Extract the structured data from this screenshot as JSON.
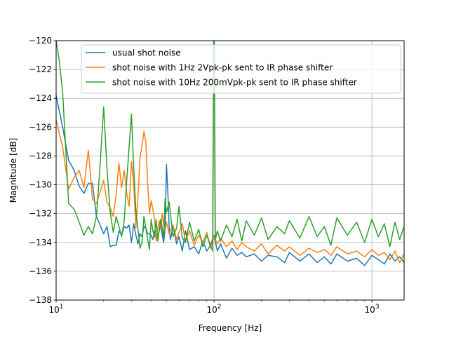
{
  "chart_data": {
    "type": "line",
    "title": "",
    "xlabel": "Frequency [Hz]",
    "ylabel": "Magnitude [dB]",
    "xscale": "log",
    "xlim": [
      10,
      1600
    ],
    "ylim": [
      -138,
      -120
    ],
    "x_ticks": [
      {
        "value": 10,
        "base": "10",
        "exp": "1"
      },
      {
        "value": 100,
        "base": "10",
        "exp": "2"
      },
      {
        "value": 1000,
        "base": "10",
        "exp": "3"
      }
    ],
    "y_ticks": [
      {
        "value": -138,
        "label": "−138"
      },
      {
        "value": -136,
        "label": "−136"
      },
      {
        "value": -134,
        "label": "−134"
      },
      {
        "value": -132,
        "label": "−132"
      },
      {
        "value": -130,
        "label": "−130"
      },
      {
        "value": -128,
        "label": "−128"
      },
      {
        "value": -126,
        "label": "−126"
      },
      {
        "value": -124,
        "label": "−124"
      },
      {
        "value": -122,
        "label": "−122"
      },
      {
        "value": -120,
        "label": "−120"
      }
    ],
    "grid": true,
    "legend_position": "top-right",
    "series": [
      {
        "name": "usual shot noise",
        "color": "#1f77b4",
        "x": [
          10,
          11,
          12,
          13,
          14,
          15,
          16,
          17,
          18,
          19,
          20,
          21,
          22,
          23,
          24,
          25,
          26,
          27,
          28,
          29,
          30,
          31,
          32,
          33,
          34,
          35,
          36,
          37,
          38,
          39,
          40,
          41,
          42,
          43,
          44,
          45,
          46,
          47,
          48,
          49,
          50,
          51,
          52,
          53,
          55,
          58,
          60,
          63,
          66,
          70,
          75,
          80,
          85,
          90,
          95,
          100,
          105,
          110,
          120,
          130,
          140,
          150,
          160,
          180,
          200,
          220,
          250,
          280,
          300,
          350,
          400,
          450,
          500,
          550,
          600,
          700,
          800,
          900,
          1000,
          1100,
          1200,
          1300,
          1400,
          1500,
          1600
        ],
        "y": [
          -123.8,
          -126.0,
          -128.3,
          -129.0,
          -130.1,
          -130.6,
          -129.9,
          -129.9,
          -132.2,
          -132.8,
          -133.4,
          -132.9,
          -134.3,
          -134.2,
          -134.2,
          -133.2,
          -133.5,
          -132.9,
          -133.0,
          -132.8,
          -134.0,
          -132.7,
          -133.5,
          -134.1,
          -133.4,
          -133.6,
          -132.9,
          -133.0,
          -133.4,
          -133.4,
          -133.5,
          -133.8,
          -133.2,
          -133.7,
          -133.6,
          -133.2,
          -132.8,
          -133.5,
          -134.0,
          -133.0,
          -128.6,
          -130.5,
          -133.0,
          -133.8,
          -132.9,
          -134.1,
          -133.6,
          -134.6,
          -133.2,
          -134.5,
          -134.3,
          -134.8,
          -133.9,
          -134.6,
          -134.2,
          -133.5,
          -134.6,
          -134.1,
          -135.1,
          -134.4,
          -134.9,
          -134.7,
          -135.0,
          -134.8,
          -135.3,
          -134.9,
          -135.0,
          -135.4,
          -134.7,
          -135.3,
          -134.8,
          -135.4,
          -135.0,
          -135.5,
          -134.8,
          -135.3,
          -135.1,
          -135.6,
          -134.9,
          -135.2,
          -135.5,
          -134.8,
          -135.3,
          -135.0,
          -135.4
        ]
      },
      {
        "name": "shot noise with 1Hz 2Vpk-pk sent to IR phase shifter",
        "color": "#ff7f0e",
        "x": [
          10,
          11,
          12,
          13,
          14,
          15,
          16,
          17,
          18,
          19,
          20,
          21,
          22,
          23,
          24,
          25,
          26,
          27,
          28,
          29,
          30,
          31,
          32,
          33,
          34,
          35,
          36,
          37,
          38,
          39,
          40,
          41,
          42,
          43,
          44,
          45,
          46,
          47,
          48,
          49,
          50,
          52,
          55,
          58,
          60,
          63,
          66,
          70,
          75,
          80,
          85,
          90,
          95,
          100,
          105,
          110,
          120,
          130,
          140,
          150,
          160,
          180,
          200,
          220,
          250,
          280,
          300,
          350,
          400,
          450,
          500,
          550,
          600,
          700,
          800,
          900,
          1000,
          1100,
          1200,
          1300,
          1400,
          1500,
          1600
        ],
        "y": [
          -125.5,
          -127.4,
          -130.3,
          -129.5,
          -129.0,
          -130.2,
          -127.6,
          -131.0,
          -131.3,
          -130.5,
          -129.7,
          -131.2,
          -131.6,
          -132.2,
          -130.7,
          -128.5,
          -130.2,
          -129.0,
          -130.6,
          -131.5,
          -128.4,
          -130.0,
          -133.0,
          -130.8,
          -128.1,
          -127.3,
          -126.3,
          -127.0,
          -129.9,
          -132.0,
          -131.1,
          -131.7,
          -132.4,
          -133.9,
          -133.0,
          -132.5,
          -133.0,
          -132.0,
          -132.8,
          -133.2,
          -132.6,
          -133.4,
          -132.8,
          -133.8,
          -133.3,
          -132.7,
          -133.9,
          -133.2,
          -134.2,
          -133.5,
          -134.0,
          -133.3,
          -134.4,
          -133.6,
          -134.1,
          -133.7,
          -134.3,
          -133.9,
          -134.5,
          -134.0,
          -134.3,
          -134.6,
          -134.1,
          -134.8,
          -134.2,
          -134.6,
          -134.3,
          -134.9,
          -134.4,
          -134.7,
          -134.5,
          -134.9,
          -134.3,
          -134.8,
          -134.6,
          -135.0,
          -134.5,
          -134.9,
          -134.7,
          -135.2,
          -134.6,
          -135.4,
          -134.8
        ]
      },
      {
        "name": "shot noise with 10Hz 200mVpk-pk sent to IR phase shifter",
        "color": "#2ca02c",
        "x": [
          10,
          10.5,
          11,
          11.5,
          12,
          13,
          14,
          15,
          16,
          17,
          18,
          19,
          20,
          21,
          22,
          23,
          24,
          25,
          26,
          27,
          28,
          29,
          30,
          31,
          32,
          33,
          34,
          35,
          36,
          37,
          38,
          39,
          40,
          41,
          42,
          43,
          44,
          45,
          46,
          47,
          48,
          49,
          50,
          52,
          55,
          58,
          60,
          63,
          66,
          70,
          75,
          80,
          85,
          90,
          95,
          98,
          99.5,
          100,
          100.5,
          102,
          105,
          110,
          120,
          130,
          140,
          150,
          160,
          180,
          200,
          220,
          250,
          280,
          300,
          350,
          400,
          450,
          500,
          550,
          600,
          700,
          800,
          900,
          1000,
          1100,
          1200,
          1300,
          1400,
          1500,
          1600
        ],
        "y": [
          -120.0,
          -121.5,
          -123.6,
          -127.5,
          -131.3,
          -131.7,
          -132.6,
          -133.5,
          -132.9,
          -133.4,
          -132.2,
          -128.6,
          -124.6,
          -128.9,
          -131.9,
          -133.3,
          -132.2,
          -132.9,
          -133.6,
          -132.5,
          -129.7,
          -127.4,
          -125.1,
          -128.8,
          -131.8,
          -133.1,
          -134.4,
          -134.0,
          -132.2,
          -133.0,
          -133.8,
          -134.5,
          -132.4,
          -133.2,
          -133.6,
          -132.4,
          -133.9,
          -133.1,
          -132.4,
          -133.0,
          -133.7,
          -131.0,
          -131.9,
          -131.2,
          -133.6,
          -133.0,
          -131.5,
          -133.7,
          -134.0,
          -132.6,
          -133.9,
          -133.1,
          -134.3,
          -133.5,
          -134.2,
          -134.6,
          -120.0,
          -120.0,
          -120.0,
          -133.8,
          -133.2,
          -133.9,
          -132.8,
          -133.6,
          -132.4,
          -133.9,
          -132.5,
          -133.5,
          -132.3,
          -133.8,
          -132.9,
          -133.4,
          -132.5,
          -133.7,
          -132.2,
          -133.6,
          -132.9,
          -134.2,
          -132.3,
          -133.5,
          -132.6,
          -134.0,
          -132.4,
          -133.6,
          -132.7,
          -134.3,
          -132.6,
          -133.8,
          -132.9
        ]
      }
    ]
  }
}
